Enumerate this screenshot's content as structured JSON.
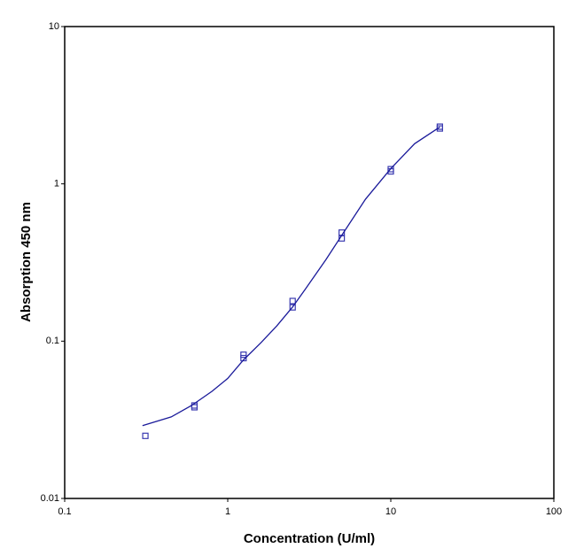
{
  "chart_data": {
    "type": "scatter",
    "x_label": "Concentration (U/ml)",
    "y_label": "Absorption 450 nm",
    "xscale": "log",
    "yscale": "log",
    "xlim": [
      0.1,
      100
    ],
    "xticks": [
      0.1,
      1,
      10,
      100
    ],
    "ylim": [
      0.01,
      10
    ],
    "yticks": [
      0.01,
      0.1,
      1,
      10
    ],
    "series": [
      {
        "type": "scatter",
        "color": "#3a3ab0",
        "x": [
          0.3125,
          0.625,
          0.625,
          1.25,
          1.25,
          2.5,
          2.5,
          5,
          5,
          10,
          10,
          20,
          20
        ],
        "values": [
          0.025,
          0.039,
          0.038,
          0.082,
          0.078,
          0.18,
          0.164,
          0.49,
          0.45,
          1.24,
          1.2,
          2.31,
          2.25
        ]
      },
      {
        "type": "line",
        "color": "#1a1a9a",
        "x": [
          0.3,
          0.45,
          0.6,
          0.8,
          1,
          1.25,
          1.6,
          2,
          2.5,
          3,
          4,
          5,
          7,
          10,
          14,
          20
        ],
        "values": [
          0.029,
          0.033,
          0.039,
          0.048,
          0.058,
          0.076,
          0.098,
          0.125,
          0.165,
          0.215,
          0.33,
          0.47,
          0.8,
          1.25,
          1.8,
          2.3
        ]
      }
    ]
  }
}
